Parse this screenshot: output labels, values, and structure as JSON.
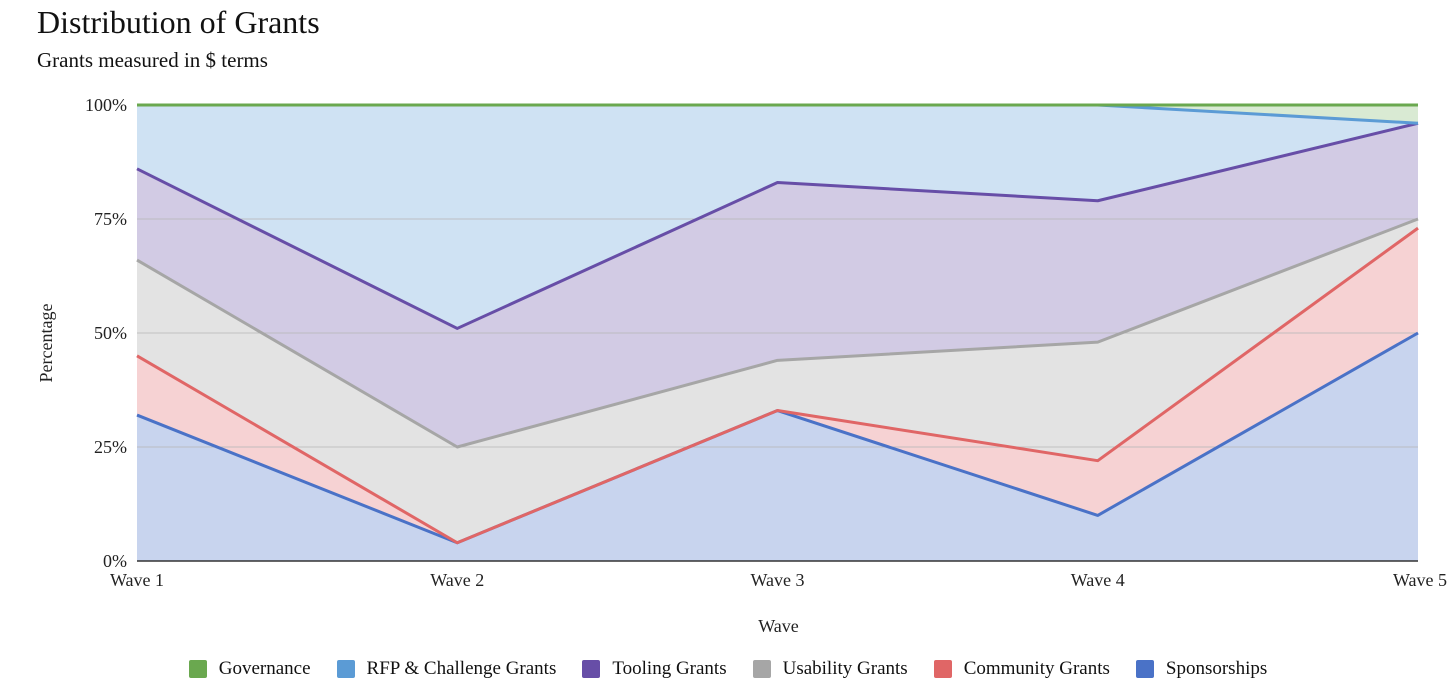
{
  "chart_data": {
    "type": "area",
    "stacking": "percent",
    "title": "Distribution of Grants",
    "subtitle": "Grants measured in $ terms",
    "xlabel": "Wave",
    "ylabel": "Percentage",
    "categories": [
      "Wave 1",
      "Wave 2",
      "Wave 3",
      "Wave 4",
      "Wave 5"
    ],
    "yticks": [
      {
        "value": 0,
        "label": "0%"
      },
      {
        "value": 25,
        "label": "25%"
      },
      {
        "value": 50,
        "label": "50%"
      },
      {
        "value": 75,
        "label": "75%"
      },
      {
        "value": 100,
        "label": "100%"
      }
    ],
    "ylim": [
      0,
      100
    ],
    "grid": true,
    "legend_position": "bottom",
    "series": [
      {
        "name": "Sponsorships",
        "color": "#4a72c7",
        "fill": "#c8d4ee",
        "values": [
          32,
          4,
          33,
          10,
          50
        ]
      },
      {
        "name": "Community Grants",
        "color": "#e06666",
        "fill": "#f6d2d3",
        "values": [
          13,
          0,
          0,
          12,
          23
        ]
      },
      {
        "name": "Usability Grants",
        "color": "#a6a6a6",
        "fill": "#e3e3e3",
        "values": [
          21,
          21,
          11,
          26,
          2
        ]
      },
      {
        "name": "Tooling Grants",
        "color": "#674ea7",
        "fill": "#d2cbe4",
        "values": [
          20,
          26,
          39,
          31,
          21
        ]
      },
      {
        "name": "RFP & Challenge Grants",
        "color": "#5b9bd5",
        "fill": "#cfe2f3",
        "values": [
          14,
          49,
          17,
          21,
          0
        ]
      },
      {
        "name": "Governance",
        "color": "#6aa84f",
        "fill": "#d9ead3",
        "values": [
          0,
          0,
          0,
          0,
          4
        ]
      }
    ],
    "legend_order": [
      "Governance",
      "RFP & Challenge Grants",
      "Tooling Grants",
      "Usability Grants",
      "Community Grants",
      "Sponsorships"
    ]
  }
}
